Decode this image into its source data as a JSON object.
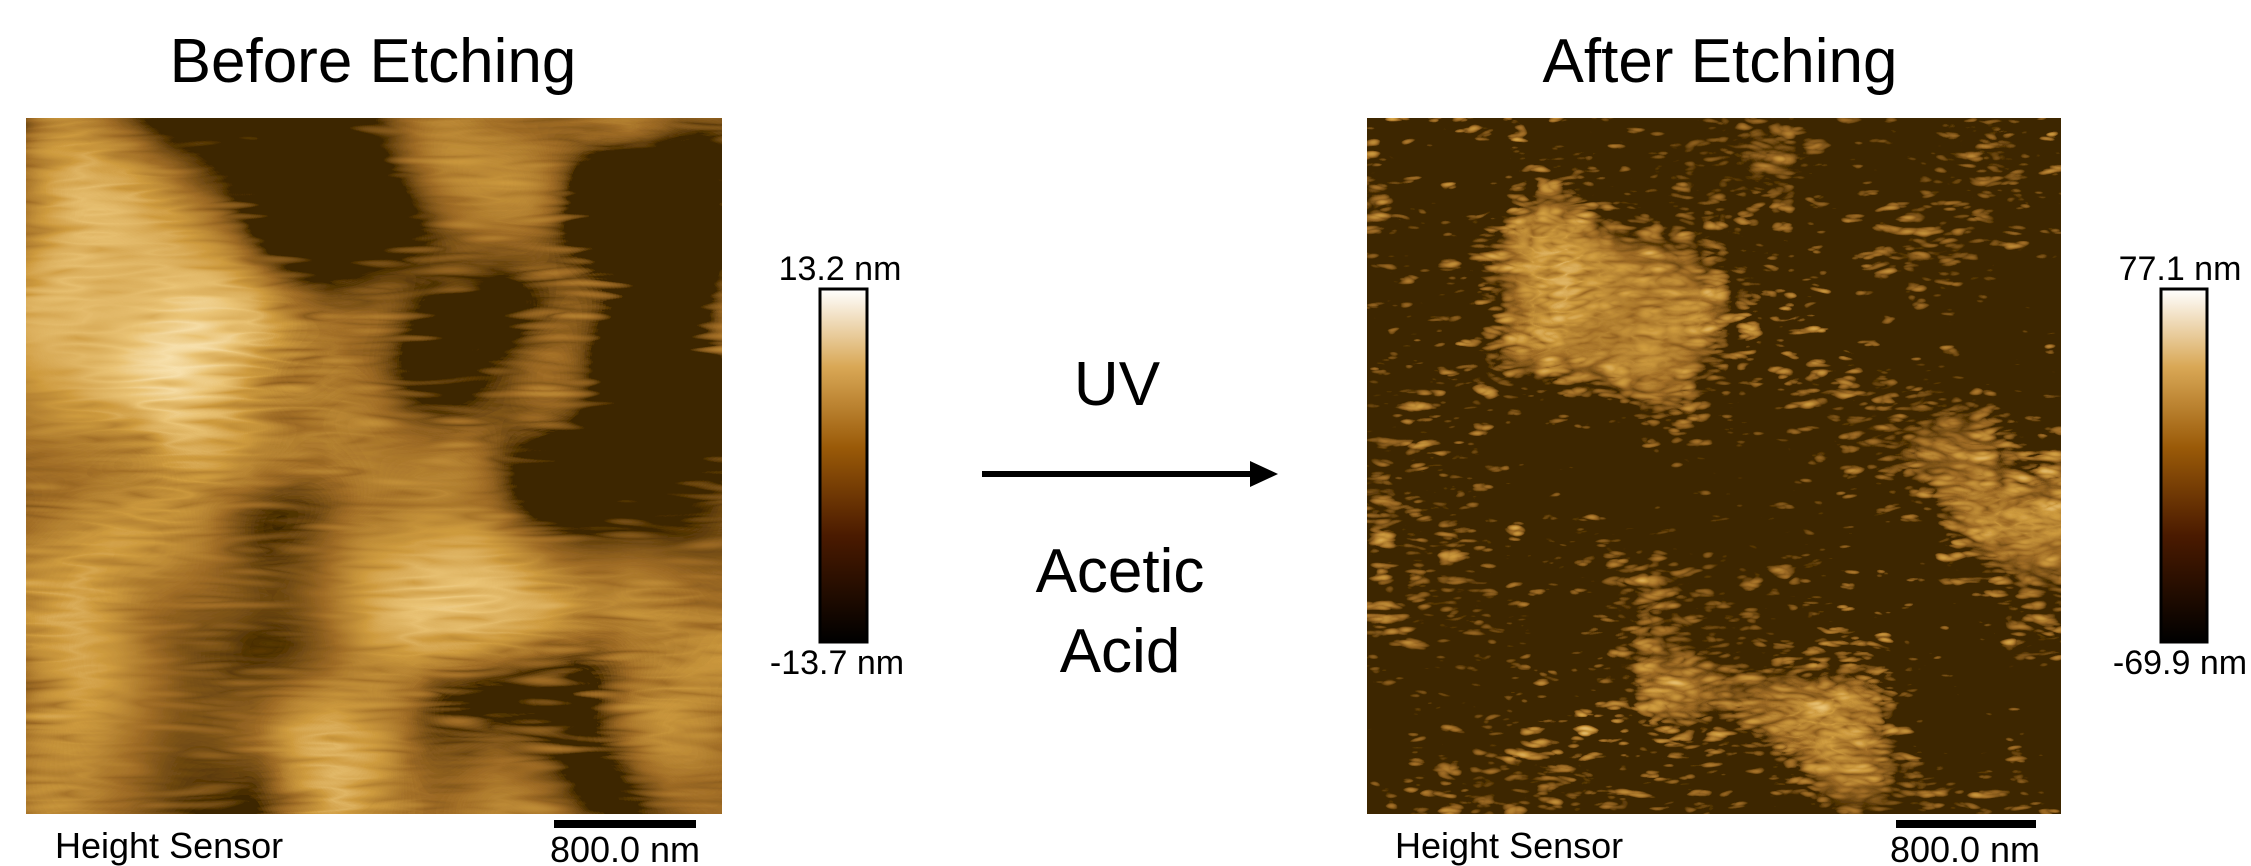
{
  "panels": [
    {
      "title": "Before Etching",
      "scale_max": "13.2 nm",
      "scale_min": "-13.7 nm",
      "channel": "Height Sensor",
      "scale_bar": "800.0 nm"
    },
    {
      "title": "After Etching",
      "scale_max": "77.1 nm",
      "scale_min": "-69.9 nm",
      "channel": "Height Sensor",
      "scale_bar": "800.0 nm"
    }
  ],
  "process": {
    "top": "UV",
    "bottom": "Acetic Acid"
  }
}
